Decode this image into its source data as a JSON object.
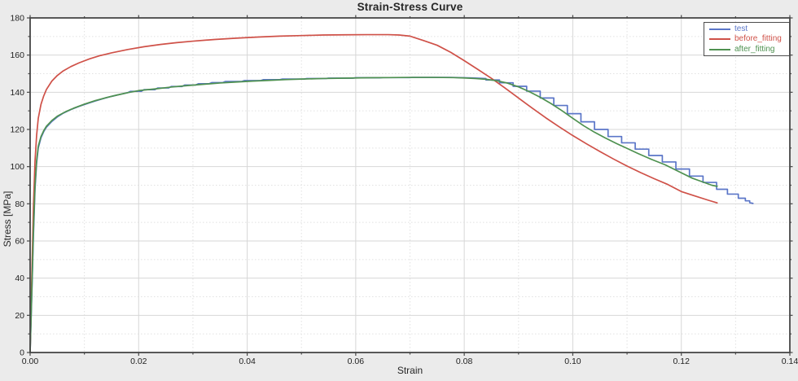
{
  "title": "Strain-Stress Curve",
  "colors": {
    "figure_bg": "#ebebeb",
    "plot_bg": "#ffffff",
    "grid_major": "#d7d7d7",
    "grid_minor": "#e1e1e1",
    "spine": "#474747",
    "tick": "#474747",
    "tick_text": "#1f1f1f",
    "title_text": "#262626",
    "test": "#5b76c8",
    "before_fitting": "#cf5148",
    "after_fitting": "#4e9150"
  },
  "chart_data": {
    "type": "line",
    "title": "Strain-Stress Curve",
    "xlabel": "Strain",
    "ylabel": "Stress [MPa]",
    "xlim": [
      0,
      0.14
    ],
    "ylim": [
      0,
      180
    ],
    "x_major_ticks": [
      0,
      0.02,
      0.04,
      0.06,
      0.08,
      0.1,
      0.12,
      0.14
    ],
    "x_tick_labels": [
      "0.00",
      "0.02",
      "0.04",
      "0.06",
      "0.08",
      "0.10",
      "0.12",
      "0.14"
    ],
    "x_minor_ticks": [
      0.01,
      0.03,
      0.05,
      0.07,
      0.09,
      0.11,
      0.13
    ],
    "y_major_ticks": [
      0,
      20,
      40,
      60,
      80,
      100,
      120,
      140,
      160,
      180
    ],
    "y_tick_labels": [
      "0",
      "20",
      "40",
      "60",
      "80",
      "100",
      "120",
      "140",
      "160",
      "180"
    ],
    "y_minor_ticks": [
      10,
      30,
      50,
      70,
      90,
      110,
      130,
      150,
      170
    ],
    "grid": {
      "major": "solid",
      "minor": "dotted"
    },
    "legend": {
      "position": "top-right",
      "entries": [
        "test",
        "before_fitting",
        "after_fitting"
      ]
    },
    "series": [
      {
        "name": "test",
        "color": "#5b76c8",
        "points": [
          [
            0,
            0
          ],
          [
            0.0003,
            30
          ],
          [
            0.0006,
            62
          ],
          [
            0.0009,
            88
          ],
          [
            0.0012,
            102
          ],
          [
            0.0015,
            110
          ],
          [
            0.002,
            115.5
          ],
          [
            0.0025,
            118.8
          ],
          [
            0.003,
            121.2
          ],
          [
            0.004,
            124.3
          ],
          [
            0.005,
            126.7
          ],
          [
            0.006,
            128.6
          ],
          [
            0.0075,
            130.7
          ],
          [
            0.009,
            132.4
          ],
          [
            0.0105,
            133.9
          ],
          [
            0.012,
            135.3
          ],
          [
            0.0135,
            136.6
          ],
          [
            0.015,
            137.8
          ],
          [
            0.0165,
            138.8
          ],
          [
            0.018,
            139.8
          ],
          [
            0.0185,
            140.5
          ],
          [
            0.0205,
            140.5
          ],
          [
            0.021,
            141.4
          ],
          [
            0.023,
            141.4
          ],
          [
            0.0235,
            142.3
          ],
          [
            0.0255,
            142.3
          ],
          [
            0.026,
            143.1
          ],
          [
            0.028,
            143.1
          ],
          [
            0.0285,
            143.9
          ],
          [
            0.0305,
            143.9
          ],
          [
            0.031,
            144.6
          ],
          [
            0.033,
            144.6
          ],
          [
            0.0335,
            145.2
          ],
          [
            0.0355,
            145.2
          ],
          [
            0.036,
            145.8
          ],
          [
            0.039,
            145.8
          ],
          [
            0.0395,
            146.3
          ],
          [
            0.0425,
            146.3
          ],
          [
            0.043,
            146.8
          ],
          [
            0.046,
            146.8
          ],
          [
            0.0465,
            147.1
          ],
          [
            0.0505,
            147.1
          ],
          [
            0.051,
            147.4
          ],
          [
            0.0545,
            147.4
          ],
          [
            0.055,
            147.6
          ],
          [
            0.0595,
            147.6
          ],
          [
            0.06,
            147.8
          ],
          [
            0.0645,
            147.8
          ],
          [
            0.065,
            147.9
          ],
          [
            0.07,
            147.9
          ],
          [
            0.0705,
            148
          ],
          [
            0.0775,
            148
          ],
          [
            0.0815,
            147.7
          ],
          [
            0.084,
            147.4
          ],
          [
            0.084,
            146.6
          ],
          [
            0.0865,
            146.6
          ],
          [
            0.0865,
            145.1
          ],
          [
            0.089,
            145.1
          ],
          [
            0.089,
            143.2
          ],
          [
            0.0915,
            143.2
          ],
          [
            0.0915,
            140.6
          ],
          [
            0.094,
            140.6
          ],
          [
            0.094,
            136.9
          ],
          [
            0.0965,
            136.9
          ],
          [
            0.0965,
            132.9
          ],
          [
            0.099,
            132.9
          ],
          [
            0.099,
            128.5
          ],
          [
            0.1015,
            128.5
          ],
          [
            0.1015,
            124.1
          ],
          [
            0.104,
            124.1
          ],
          [
            0.104,
            120
          ],
          [
            0.1065,
            120
          ],
          [
            0.1065,
            116.2
          ],
          [
            0.109,
            116.2
          ],
          [
            0.109,
            112.8
          ],
          [
            0.1115,
            112.8
          ],
          [
            0.1115,
            109.4
          ],
          [
            0.114,
            109.4
          ],
          [
            0.114,
            106
          ],
          [
            0.1165,
            106
          ],
          [
            0.1165,
            102.5
          ],
          [
            0.119,
            102.5
          ],
          [
            0.119,
            98.7
          ],
          [
            0.1215,
            98.7
          ],
          [
            0.1215,
            94.9
          ],
          [
            0.124,
            94.9
          ],
          [
            0.124,
            91.5
          ],
          [
            0.1265,
            91.5
          ],
          [
            0.1265,
            87.8
          ],
          [
            0.1285,
            87.8
          ],
          [
            0.1285,
            85.2
          ],
          [
            0.1305,
            85.2
          ],
          [
            0.1305,
            83
          ],
          [
            0.1318,
            83
          ],
          [
            0.1318,
            81.6
          ],
          [
            0.1326,
            81.6
          ],
          [
            0.1326,
            80.6
          ],
          [
            0.1332,
            80.2
          ]
        ]
      },
      {
        "name": "before_fitting",
        "color": "#cf5148",
        "points": [
          [
            0,
            0
          ],
          [
            0.0003,
            40
          ],
          [
            0.0006,
            78
          ],
          [
            0.0009,
            103
          ],
          [
            0.0012,
            117
          ],
          [
            0.0015,
            126
          ],
          [
            0.002,
            133.5
          ],
          [
            0.0025,
            138
          ],
          [
            0.003,
            141.5
          ],
          [
            0.004,
            146
          ],
          [
            0.005,
            149
          ],
          [
            0.006,
            151.3
          ],
          [
            0.0075,
            153.8
          ],
          [
            0.009,
            155.8
          ],
          [
            0.011,
            158
          ],
          [
            0.013,
            159.8
          ],
          [
            0.015,
            161.2
          ],
          [
            0.018,
            163
          ],
          [
            0.021,
            164.5
          ],
          [
            0.024,
            165.7
          ],
          [
            0.027,
            166.7
          ],
          [
            0.03,
            167.5
          ],
          [
            0.034,
            168.4
          ],
          [
            0.038,
            169.1
          ],
          [
            0.042,
            169.7
          ],
          [
            0.046,
            170.2
          ],
          [
            0.05,
            170.5
          ],
          [
            0.054,
            170.8
          ],
          [
            0.058,
            170.9
          ],
          [
            0.062,
            171
          ],
          [
            0.066,
            171
          ],
          [
            0.068,
            170.8
          ],
          [
            0.07,
            170.2
          ],
          [
            0.0725,
            167.8
          ],
          [
            0.075,
            165.3
          ],
          [
            0.0775,
            161.5
          ],
          [
            0.08,
            157
          ],
          [
            0.0825,
            152.3
          ],
          [
            0.085,
            147.5
          ],
          [
            0.0875,
            142.3
          ],
          [
            0.09,
            136.9
          ],
          [
            0.0925,
            131.5
          ],
          [
            0.095,
            126.3
          ],
          [
            0.0975,
            121.4
          ],
          [
            0.1,
            116.7
          ],
          [
            0.1025,
            112.3
          ],
          [
            0.105,
            108.1
          ],
          [
            0.1075,
            104.1
          ],
          [
            0.11,
            100.3
          ],
          [
            0.1125,
            96.8
          ],
          [
            0.115,
            93.5
          ],
          [
            0.1175,
            90.4
          ],
          [
            0.12,
            86.6
          ],
          [
            0.1225,
            84.2
          ],
          [
            0.125,
            81.9
          ],
          [
            0.1266,
            80.5
          ]
        ]
      },
      {
        "name": "after_fitting",
        "color": "#4e9150",
        "points": [
          [
            0,
            0
          ],
          [
            0.0003,
            32
          ],
          [
            0.0006,
            65
          ],
          [
            0.0009,
            90
          ],
          [
            0.0012,
            103.5
          ],
          [
            0.0015,
            111
          ],
          [
            0.002,
            116.2
          ],
          [
            0.0025,
            119.3
          ],
          [
            0.003,
            121.7
          ],
          [
            0.004,
            124.8
          ],
          [
            0.005,
            127.1
          ],
          [
            0.0065,
            129.5
          ],
          [
            0.008,
            131.4
          ],
          [
            0.01,
            133.6
          ],
          [
            0.012,
            135.5
          ],
          [
            0.014,
            137.1
          ],
          [
            0.016,
            138.5
          ],
          [
            0.018,
            139.8
          ],
          [
            0.02,
            140.9
          ],
          [
            0.023,
            141.8
          ],
          [
            0.026,
            142.8
          ],
          [
            0.029,
            143.6
          ],
          [
            0.032,
            144.3
          ],
          [
            0.035,
            145
          ],
          [
            0.038,
            145.5
          ],
          [
            0.041,
            146
          ],
          [
            0.044,
            146.4
          ],
          [
            0.047,
            146.8
          ],
          [
            0.05,
            147.1
          ],
          [
            0.054,
            147.4
          ],
          [
            0.058,
            147.6
          ],
          [
            0.062,
            147.8
          ],
          [
            0.066,
            147.9
          ],
          [
            0.07,
            148
          ],
          [
            0.074,
            148
          ],
          [
            0.078,
            147.9
          ],
          [
            0.08,
            147.7
          ],
          [
            0.082,
            147.4
          ],
          [
            0.084,
            147
          ],
          [
            0.086,
            146.2
          ],
          [
            0.088,
            144.9
          ],
          [
            0.09,
            142.9
          ],
          [
            0.092,
            140.3
          ],
          [
            0.094,
            137.3
          ],
          [
            0.096,
            133.9
          ],
          [
            0.098,
            130.1
          ],
          [
            0.1,
            126
          ],
          [
            0.102,
            122
          ],
          [
            0.104,
            118.5
          ],
          [
            0.106,
            115.4
          ],
          [
            0.108,
            112.5
          ],
          [
            0.11,
            109.8
          ],
          [
            0.112,
            107.1
          ],
          [
            0.1145,
            103.9
          ],
          [
            0.117,
            101
          ],
          [
            0.1195,
            97.4
          ],
          [
            0.122,
            93.8
          ],
          [
            0.124,
            91.7
          ],
          [
            0.1256,
            90
          ],
          [
            0.1266,
            89.4
          ]
        ]
      }
    ]
  }
}
